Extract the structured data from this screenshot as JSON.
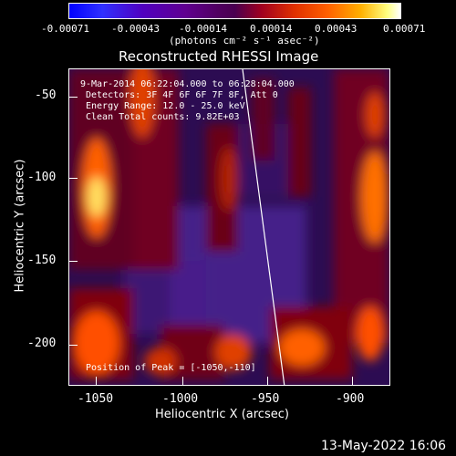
{
  "colorbar": {
    "ticks": [
      "-0.00071",
      "-0.00043",
      "-0.00014",
      "0.00014",
      "0.00043",
      "0.00071"
    ],
    "units": "(photons cm⁻² s⁻¹ asec⁻²)"
  },
  "plot": {
    "title": "Reconstructed RHESSI Image",
    "xlabel": "Heliocentric X (arcsec)",
    "ylabel": "Heliocentric Y (arcsec)",
    "xticks": [
      "-1050",
      "-1000",
      "-950",
      "-900"
    ],
    "yticks": [
      "-50",
      "-100",
      "-150",
      "-200"
    ],
    "annotations": {
      "time_range": "9-Mar-2014 06:22:04.000 to 06:28:04.000",
      "detectors": "Detectors: 3F 4F 6F 6F 7F 8F, Att 0",
      "energy": "Energy Range: 12.0 - 25.0 keV",
      "clean": "Clean    Total counts: 9.82E+03",
      "peak": "Position of Peak = [-1050,-110]"
    }
  },
  "footer": {
    "date": "13-May-2022 16:06"
  }
}
